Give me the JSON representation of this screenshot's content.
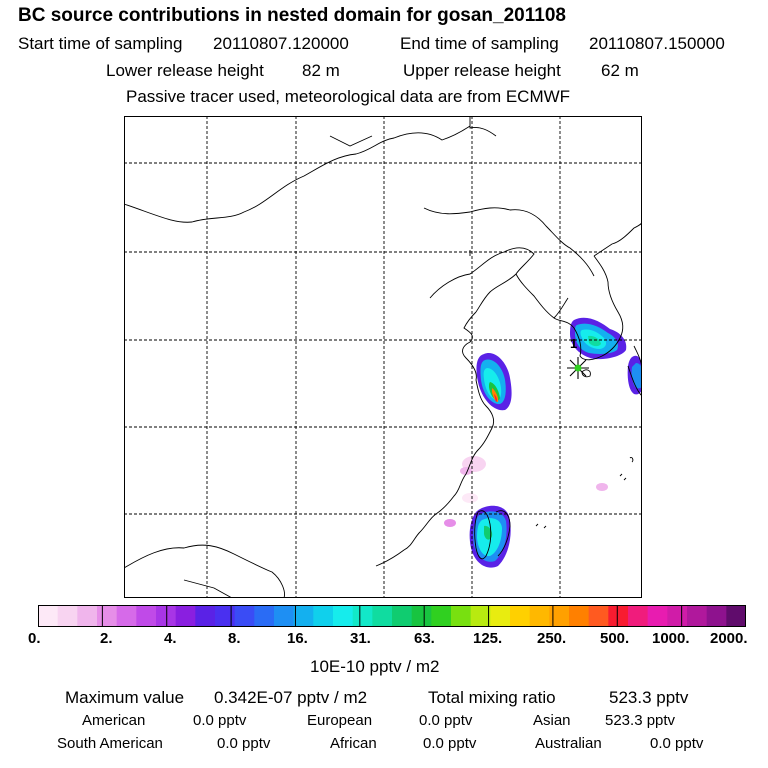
{
  "header": {
    "title": "BC  source contributions in nested domain for gosan_201108",
    "start_label": "Start time of sampling",
    "start_value": "20110807.120000",
    "end_label": "End time of sampling",
    "end_value": "20110807.150000",
    "lower_label": "Lower release height",
    "lower_value": "82 m",
    "upper_label": "Upper release height",
    "upper_value": "62 m",
    "subtitle": "Passive tracer used, meteorological data are from ECMWF"
  },
  "colorbar": {
    "colors": [
      "#fde9f7",
      "#f8d4f1",
      "#f0b5ec",
      "#e68ee8",
      "#d66ae9",
      "#c04ae8",
      "#a835e6",
      "#8a1fe0",
      "#5a22e6",
      "#4a30f0",
      "#3a4cf5",
      "#2a6cf5",
      "#1e8ff3",
      "#14b0ef",
      "#10d0ec",
      "#16ecec",
      "#12e8c8",
      "#10dca0",
      "#10cc70",
      "#18c440",
      "#30d020",
      "#78e010",
      "#b8ea10",
      "#e8ec10",
      "#ffd000",
      "#ffb800",
      "#ffa000",
      "#ff8000",
      "#ff5a20",
      "#f81c30",
      "#f01c7c",
      "#e81cb0",
      "#d01ca8",
      "#b0189c",
      "#8e128e",
      "#600c6c"
    ],
    "ticks": [
      "0.",
      "2.",
      "4.",
      "8.",
      "16.",
      "31.",
      "63.",
      "125.",
      "250.",
      "500.",
      "1000.",
      "2000."
    ],
    "units": "10E-10 pptv / m2"
  },
  "stats": {
    "max_label": "Maximum value",
    "max_value": "0.342E-07 pptv / m2",
    "total_label": "Total mixing ratio",
    "total_value": "523.3 pptv",
    "sources": [
      {
        "name": "American",
        "value": "0.0 pptv"
      },
      {
        "name": "European",
        "value": "0.0 pptv"
      },
      {
        "name": "Asian",
        "value": "523.3 pptv"
      },
      {
        "name": "South American",
        "value": "0.0 pptv"
      },
      {
        "name": "African",
        "value": "0.0 pptv"
      },
      {
        "name": "Australian",
        "value": "0.0 pptv"
      }
    ]
  },
  "map": {
    "receptor_label": "1"
  }
}
